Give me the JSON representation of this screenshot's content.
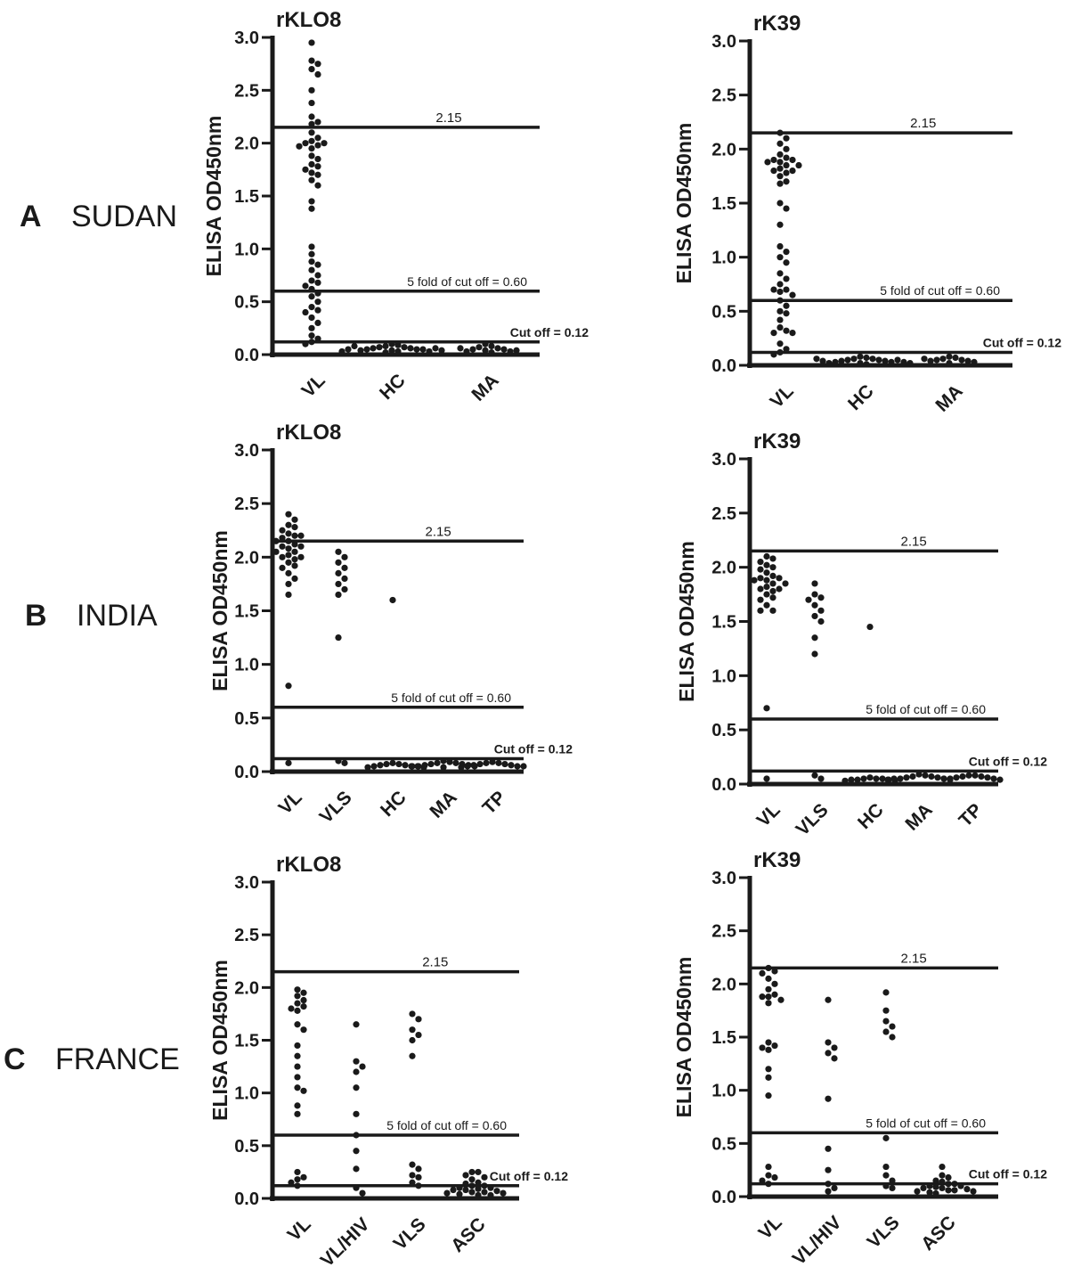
{
  "figure": {
    "rows": [
      {
        "letter": "A",
        "country": "SUDAN"
      },
      {
        "letter": "B",
        "country": "INDIA"
      },
      {
        "letter": "C",
        "country": "FRANCE"
      }
    ],
    "ylabel": "ELISA OD450nm",
    "ref_line_labels": {
      "high": "2.15",
      "five_fold": "5 fold of cut off = 0.60",
      "cutoff": "Cut off = 0.12"
    }
  },
  "chart_data": [
    {
      "type": "scatter",
      "panel": "A",
      "title": "rKLO8",
      "ylabel": "ELISA OD450nm",
      "ylim": [
        0,
        3.0
      ],
      "yticks": [
        "0.0",
        "0.5",
        "1.0",
        "1.5",
        "2.0",
        "2.5",
        "3.0"
      ],
      "reference_lines": [
        {
          "y": 2.15,
          "label": "2.15"
        },
        {
          "y": 0.6,
          "label": "5 fold of cut off = 0.60"
        },
        {
          "y": 0.12,
          "label": "Cut off = 0.12"
        }
      ],
      "categories": [
        "VL",
        "HC",
        "MA"
      ],
      "series": [
        {
          "category": "VL",
          "values": [
            2.95,
            2.78,
            2.75,
            2.7,
            2.65,
            2.5,
            2.38,
            2.25,
            2.2,
            2.18,
            2.1,
            2.05,
            2.02,
            2.0,
            2.0,
            1.98,
            1.97,
            1.95,
            1.88,
            1.85,
            1.8,
            1.78,
            1.75,
            1.72,
            1.7,
            1.65,
            1.6,
            1.45,
            1.38,
            1.02,
            0.95,
            0.88,
            0.85,
            0.8,
            0.75,
            0.7,
            0.68,
            0.65,
            0.62,
            0.58,
            0.55,
            0.5,
            0.45,
            0.42,
            0.4,
            0.35,
            0.3,
            0.25,
            0.18,
            0.15,
            0.12,
            0.1
          ]
        },
        {
          "category": "HC",
          "values": [
            0.1,
            0.09,
            0.08,
            0.07,
            0.07,
            0.06,
            0.06,
            0.05,
            0.05,
            0.05,
            0.04,
            0.04,
            0.03,
            0.03,
            0.02,
            0.08,
            0.06,
            0.05,
            0.04,
            0.03
          ]
        },
        {
          "category": "MA",
          "values": [
            0.1,
            0.08,
            0.07,
            0.06,
            0.05,
            0.05,
            0.04,
            0.03,
            0.03,
            0.02,
            0.06,
            0.04
          ]
        }
      ]
    },
    {
      "type": "scatter",
      "panel": "A",
      "title": "rK39",
      "ylabel": "ELISA OD450nm",
      "ylim": [
        0,
        3.0
      ],
      "yticks": [
        "0.0",
        "0.5",
        "1.0",
        "1.5",
        "2.0",
        "2.5",
        "3.0"
      ],
      "reference_lines": [
        {
          "y": 2.15,
          "label": "2.15"
        },
        {
          "y": 0.6,
          "label": "5 fold of cut off = 0.60"
        },
        {
          "y": 0.12,
          "label": "Cut off = 0.12"
        }
      ],
      "categories": [
        "VL",
        "HC",
        "MA"
      ],
      "series": [
        {
          "category": "VL",
          "values": [
            2.15,
            2.1,
            2.05,
            2.0,
            1.95,
            1.92,
            1.9,
            1.9,
            1.88,
            1.88,
            1.85,
            1.85,
            1.82,
            1.8,
            1.8,
            1.78,
            1.75,
            1.7,
            1.68,
            1.5,
            1.45,
            1.3,
            1.1,
            1.05,
            1.0,
            0.95,
            0.85,
            0.8,
            0.75,
            0.7,
            0.7,
            0.68,
            0.65,
            0.6,
            0.55,
            0.5,
            0.48,
            0.42,
            0.35,
            0.32,
            0.3,
            0.3,
            0.2,
            0.15,
            0.12,
            0.1
          ]
        },
        {
          "category": "HC",
          "values": [
            0.08,
            0.07,
            0.06,
            0.06,
            0.05,
            0.05,
            0.04,
            0.04,
            0.03,
            0.03,
            0.02,
            0.02,
            0.05,
            0.04,
            0.03,
            0.06,
            0.02,
            0.01
          ]
        },
        {
          "category": "MA",
          "values": [
            0.08,
            0.07,
            0.06,
            0.05,
            0.05,
            0.04,
            0.04,
            0.03,
            0.02,
            0.06
          ]
        }
      ]
    },
    {
      "type": "scatter",
      "panel": "B",
      "title": "rKLO8",
      "ylabel": "ELISA OD450nm",
      "ylim": [
        0,
        3.0
      ],
      "yticks": [
        "0.0",
        "0.5",
        "1.0",
        "1.5",
        "2.0",
        "2.5",
        "3.0"
      ],
      "reference_lines": [
        {
          "y": 2.15,
          "label": "2.15"
        },
        {
          "y": 0.6,
          "label": "5 fold of cut off = 0.60"
        },
        {
          "y": 0.12,
          "label": "Cut off = 0.12"
        }
      ],
      "categories": [
        "VL",
        "VLS",
        "HC",
        "MA",
        "TP"
      ],
      "series": [
        {
          "category": "VL",
          "values": [
            2.4,
            2.35,
            2.3,
            2.28,
            2.25,
            2.22,
            2.2,
            2.2,
            2.18,
            2.15,
            2.15,
            2.12,
            2.1,
            2.1,
            2.08,
            2.05,
            2.05,
            2.02,
            2.0,
            2.0,
            1.98,
            1.95,
            1.92,
            1.9,
            1.85,
            1.8,
            1.75,
            1.65,
            0.8,
            0.08
          ]
        },
        {
          "category": "VLS",
          "values": [
            2.05,
            2.0,
            1.95,
            1.9,
            1.85,
            1.8,
            1.75,
            1.7,
            1.65,
            1.25,
            0.1,
            0.08
          ]
        },
        {
          "category": "HC",
          "values": [
            1.6,
            0.08,
            0.07,
            0.07,
            0.06,
            0.06,
            0.05,
            0.05,
            0.05,
            0.04,
            0.04
          ]
        },
        {
          "category": "MA",
          "values": [
            0.1,
            0.09,
            0.08,
            0.08,
            0.07,
            0.07,
            0.06,
            0.06,
            0.05,
            0.05,
            0.05,
            0.04
          ]
        },
        {
          "category": "TP",
          "values": [
            0.09,
            0.08,
            0.08,
            0.07,
            0.07,
            0.06,
            0.06,
            0.05,
            0.05,
            0.05,
            0.04
          ]
        }
      ]
    },
    {
      "type": "scatter",
      "panel": "B",
      "title": "rK39",
      "ylabel": "ELISA OD450nm",
      "ylim": [
        0,
        3.0
      ],
      "yticks": [
        "0.0",
        "0.5",
        "1.0",
        "1.5",
        "2.0",
        "2.5",
        "3.0"
      ],
      "reference_lines": [
        {
          "y": 2.15,
          "label": "2.15"
        },
        {
          "y": 0.6,
          "label": "5 fold of cut off = 0.60"
        },
        {
          "y": 0.12,
          "label": "Cut off = 0.12"
        }
      ],
      "categories": [
        "VL",
        "VLS",
        "HC",
        "MA",
        "TP"
      ],
      "series": [
        {
          "category": "VL",
          "values": [
            2.1,
            2.08,
            2.05,
            2.02,
            2.0,
            1.98,
            1.95,
            1.92,
            1.9,
            1.9,
            1.88,
            1.88,
            1.85,
            1.85,
            1.82,
            1.8,
            1.8,
            1.78,
            1.75,
            1.72,
            1.7,
            1.65,
            1.6,
            1.6,
            0.7,
            0.05
          ]
        },
        {
          "category": "VLS",
          "values": [
            1.85,
            1.75,
            1.72,
            1.7,
            1.65,
            1.6,
            1.55,
            1.5,
            1.35,
            1.2,
            0.08,
            0.05
          ]
        },
        {
          "category": "HC",
          "values": [
            1.45,
            0.06,
            0.05,
            0.05,
            0.05,
            0.04,
            0.04,
            0.04,
            0.03,
            0.03
          ]
        },
        {
          "category": "MA",
          "values": [
            0.09,
            0.08,
            0.07,
            0.07,
            0.06,
            0.06,
            0.05,
            0.05,
            0.05,
            0.04,
            0.04
          ]
        },
        {
          "category": "TP",
          "values": [
            0.08,
            0.08,
            0.07,
            0.07,
            0.06,
            0.06,
            0.05,
            0.05,
            0.05,
            0.04
          ]
        }
      ]
    },
    {
      "type": "scatter",
      "panel": "C",
      "title": "rKLO8",
      "ylabel": "ELISA OD450nm",
      "ylim": [
        0,
        3.0
      ],
      "yticks": [
        "0.0",
        "0.5",
        "1.0",
        "1.5",
        "2.0",
        "2.5",
        "3.0"
      ],
      "reference_lines": [
        {
          "y": 2.15,
          "label": "2.15"
        },
        {
          "y": 0.6,
          "label": "5 fold of cut off = 0.60"
        },
        {
          "y": 0.12,
          "label": "Cut off = 0.12"
        }
      ],
      "categories": [
        "VL",
        "VL/HIV",
        "VLS",
        "ASC"
      ],
      "series": [
        {
          "category": "VL",
          "values": [
            1.98,
            1.95,
            1.92,
            1.88,
            1.85,
            1.82,
            1.8,
            1.78,
            1.65,
            1.6,
            1.45,
            1.35,
            1.25,
            1.15,
            1.05,
            1.02,
            0.88,
            0.8,
            0.25,
            0.2,
            0.18,
            0.15,
            0.12
          ]
        },
        {
          "category": "VL/HIV",
          "values": [
            1.65,
            1.3,
            1.25,
            1.2,
            1.05,
            0.8,
            0.6,
            0.45,
            0.28,
            0.1,
            0.05
          ]
        },
        {
          "category": "VLS",
          "values": [
            1.75,
            1.7,
            1.6,
            1.55,
            1.5,
            1.35,
            0.32,
            0.28,
            0.22,
            0.2,
            0.15,
            0.12
          ]
        },
        {
          "category": "ASC",
          "values": [
            0.25,
            0.25,
            0.22,
            0.2,
            0.18,
            0.15,
            0.14,
            0.12,
            0.12,
            0.1,
            0.1,
            0.09,
            0.08,
            0.08,
            0.07,
            0.06,
            0.06,
            0.05,
            0.05,
            0.04,
            0.03,
            0.03
          ]
        }
      ]
    },
    {
      "type": "scatter",
      "panel": "C",
      "title": "rK39",
      "ylabel": "ELISA OD450nm",
      "ylim": [
        0,
        3.0
      ],
      "yticks": [
        "0.0",
        "0.5",
        "1.0",
        "1.5",
        "2.0",
        "2.5",
        "3.0"
      ],
      "reference_lines": [
        {
          "y": 2.15,
          "label": "2.15"
        },
        {
          "y": 0.6,
          "label": "5 fold of cut off = 0.60"
        },
        {
          "y": 0.12,
          "label": "Cut off = 0.12"
        }
      ],
      "categories": [
        "VL",
        "VL/HIV",
        "VLS",
        "ASC"
      ],
      "series": [
        {
          "category": "VL",
          "values": [
            2.15,
            2.12,
            2.1,
            2.05,
            2.0,
            1.95,
            1.9,
            1.88,
            1.88,
            1.85,
            1.82,
            1.45,
            1.42,
            1.4,
            1.38,
            1.2,
            1.12,
            0.95,
            0.28,
            0.2,
            0.18,
            0.15,
            0.12
          ]
        },
        {
          "category": "VL/HIV",
          "values": [
            1.85,
            1.45,
            1.4,
            1.35,
            1.3,
            0.92,
            0.45,
            0.25,
            0.12,
            0.08,
            0.05
          ]
        },
        {
          "category": "VLS",
          "values": [
            1.92,
            1.75,
            1.65,
            1.6,
            1.55,
            1.5,
            0.55,
            0.28,
            0.2,
            0.15,
            0.1,
            0.08
          ]
        },
        {
          "category": "ASC",
          "values": [
            0.28,
            0.2,
            0.18,
            0.15,
            0.14,
            0.12,
            0.12,
            0.1,
            0.1,
            0.09,
            0.08,
            0.08,
            0.07,
            0.06,
            0.06,
            0.05,
            0.05,
            0.04,
            0.03
          ]
        }
      ]
    }
  ]
}
